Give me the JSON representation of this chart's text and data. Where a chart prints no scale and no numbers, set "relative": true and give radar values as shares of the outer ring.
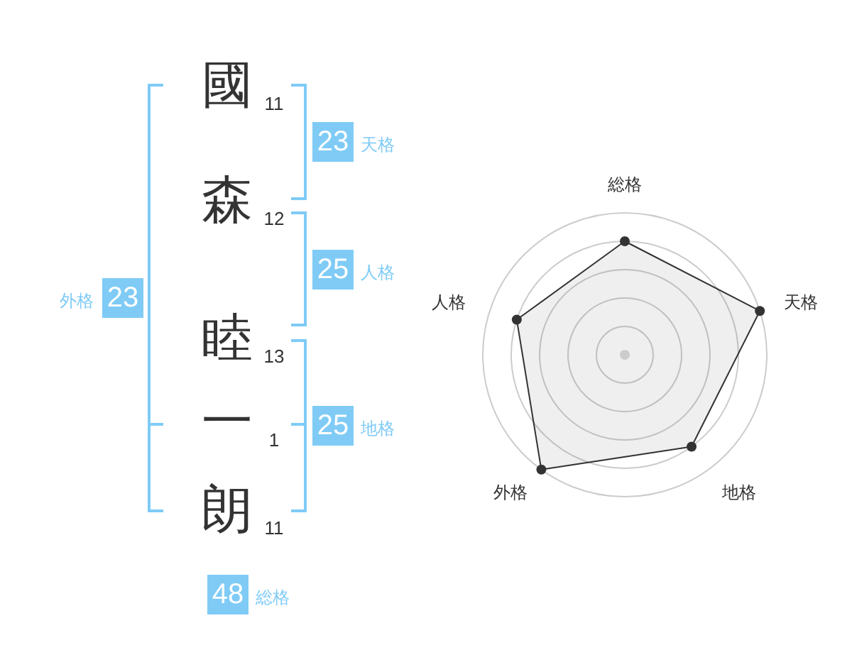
{
  "chart_data": [
    {
      "type": "other",
      "categories": [
        "國",
        "森",
        "睦",
        "一",
        "朗"
      ],
      "values": [
        11,
        12,
        13,
        1,
        11
      ],
      "data_labels": true,
      "color": "#7fcbf6",
      "annotations": [
        "23",
        "天格",
        "25",
        "人格",
        "25",
        "地格",
        "23",
        "外格",
        "48",
        "総格"
      ]
    },
    {
      "type": "radar",
      "categories": [
        "総格",
        "天格",
        "地格",
        "外格",
        "人格"
      ],
      "relative": true,
      "grid": true,
      "marker": "circle",
      "series": [
        {
          "color": "#333333",
          "values": [
            0.8,
            1,
            0.8,
            1,
            0.8
          ]
        }
      ]
    }
  ]
}
